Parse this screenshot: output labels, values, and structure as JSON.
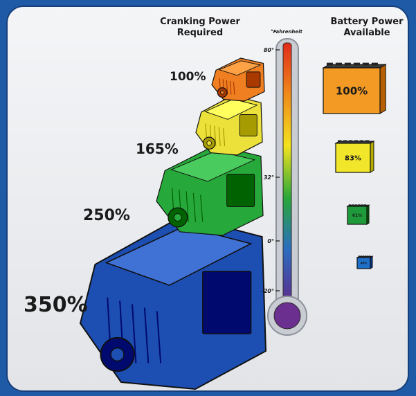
{
  "headings": {
    "cranking": [
      "Cranking Power",
      "Required"
    ],
    "battery": [
      "Battery Power",
      "Available"
    ],
    "scale_unit": "°Fahrenheit"
  },
  "engines": [
    {
      "label": "100%",
      "color": "#f07f22"
    },
    {
      "label": "165%",
      "color": "#ece13a"
    },
    {
      "label": "250%",
      "color": "#27a83a"
    },
    {
      "label": "350%",
      "color": "#1d4fb3"
    }
  ],
  "batteries": [
    {
      "label": "100%",
      "color": "#f29a23"
    },
    {
      "label": "83%",
      "color": "#f2e62a"
    },
    {
      "label": "61%",
      "color": "#1f9a3a"
    },
    {
      "label": "40%",
      "color": "#1f6fc9"
    }
  ],
  "thermometer": {
    "ticks": [
      "80°",
      "32°",
      "0°",
      "-20°"
    ],
    "gradient": [
      "#e02a1a",
      "#f08a1a",
      "#f3e21f",
      "#2aa838",
      "#2b6dc0",
      "#5a2f8f"
    ],
    "bulb_color": "#6a2f8f"
  }
}
